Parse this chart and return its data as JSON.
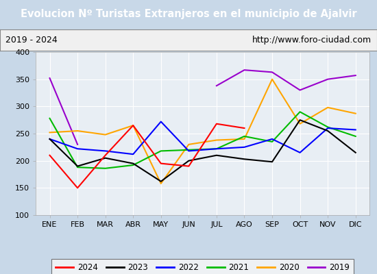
{
  "title": "Evolucion Nº Turistas Extranjeros en el municipio de Ajalvir",
  "subtitle_left": "2019 - 2024",
  "subtitle_right": "http://www.foro-ciudad.com",
  "months": [
    "ENE",
    "FEB",
    "MAR",
    "ABR",
    "MAY",
    "JUN",
    "JUL",
    "AGO",
    "SEP",
    "OCT",
    "NOV",
    "DIC"
  ],
  "ylim": [
    100,
    400
  ],
  "yticks": [
    100,
    150,
    200,
    250,
    300,
    350,
    400
  ],
  "series": {
    "2024": {
      "values": [
        210,
        150,
        210,
        265,
        195,
        190,
        268,
        260,
        null,
        null,
        null,
        null
      ],
      "color": "#ff0000",
      "zorder": 5
    },
    "2023": {
      "values": [
        240,
        190,
        205,
        195,
        162,
        200,
        210,
        203,
        198,
        275,
        255,
        215
      ],
      "color": "#000000",
      "zorder": 4
    },
    "2022": {
      "values": [
        240,
        222,
        218,
        212,
        272,
        218,
        222,
        225,
        240,
        215,
        260,
        257
      ],
      "color": "#0000ff",
      "zorder": 3
    },
    "2021": {
      "values": [
        278,
        188,
        186,
        192,
        218,
        220,
        222,
        245,
        235,
        290,
        262,
        245
      ],
      "color": "#00bb00",
      "zorder": 2
    },
    "2020": {
      "values": [
        252,
        255,
        248,
        265,
        158,
        230,
        238,
        240,
        350,
        268,
        298,
        287
      ],
      "color": "#ffa500",
      "zorder": 1
    },
    "2019": {
      "values": [
        352,
        230,
        null,
        null,
        null,
        null,
        338,
        367,
        363,
        330,
        350,
        357
      ],
      "color": "#9900cc",
      "zorder": 0
    }
  },
  "title_bg_color": "#4d8fc9",
  "title_text_color": "#ffffff",
  "subtitle_bg_color": "#f0f0f0",
  "subtitle_text_color": "#000000",
  "plot_bg_color": "#e8eef4",
  "outer_bg_color": "#c8d8e8",
  "grid_color": "#ffffff",
  "legend_order": [
    "2024",
    "2023",
    "2022",
    "2021",
    "2020",
    "2019"
  ],
  "title_fontsize": 10.5,
  "subtitle_fontsize": 9,
  "tick_fontsize": 8,
  "legend_fontsize": 8.5
}
